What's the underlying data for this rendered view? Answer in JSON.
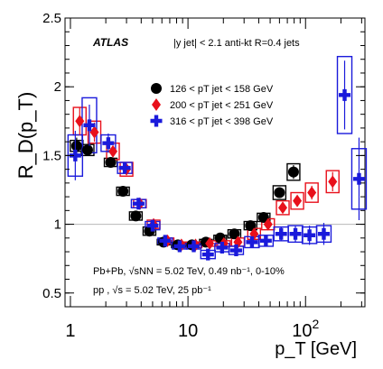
{
  "chart_data": {
    "type": "scatter",
    "experiment_label": "ATLAS",
    "selection_label": "|y jet| < 2.1 anti-kt R=0.4 jets",
    "xlabel": "p_T [GeV]",
    "ylabel": "R_D(p_T)",
    "xscale": "log",
    "xlim": [
      0.9,
      320
    ],
    "ylim": [
      0.4,
      2.5
    ],
    "x_ticks": [
      {
        "value": 1,
        "label": "1"
      },
      {
        "value": 10,
        "label": "10"
      },
      {
        "value": 100,
        "label": "10^2"
      }
    ],
    "y_ticks": [
      {
        "value": 0.5,
        "label": "0.5"
      },
      {
        "value": 1,
        "label": "1"
      },
      {
        "value": 1.5,
        "label": "1.5"
      },
      {
        "value": 2,
        "label": "2"
      },
      {
        "value": 2.5,
        "label": "2.5"
      }
    ],
    "reference_line": 1,
    "grid": false,
    "legend_position": "top-center",
    "annotations": [
      {
        "text": "Pb+Pb, √sNN = 5.02 TeV, 0.49 nb⁻¹, 0-10%"
      },
      {
        "text": "pp , √s = 5.02 TeV, 25 pb⁻¹"
      }
    ],
    "series": [
      {
        "name": "126 < pT jet < 158 GeV",
        "marker": "circle",
        "color": "#000000",
        "points": [
          {
            "x": 1.13,
            "y": 1.57,
            "elo": 0.06,
            "ehi": 0.06,
            "syslo": 0.04,
            "syshi": 0.04
          },
          {
            "x": 1.4,
            "y": 1.54,
            "elo": 0.04,
            "ehi": 0.04,
            "syslo": 0.04,
            "syshi": 0.04
          },
          {
            "x": 2.2,
            "y": 1.45,
            "elo": 0.02,
            "ehi": 0.02,
            "syslo": 0.03,
            "syshi": 0.03
          },
          {
            "x": 2.8,
            "y": 1.24,
            "elo": 0.02,
            "ehi": 0.02,
            "syslo": 0.03,
            "syshi": 0.03
          },
          {
            "x": 3.6,
            "y": 1.06,
            "elo": 0.01,
            "ehi": 0.01,
            "syslo": 0.03,
            "syshi": 0.03
          },
          {
            "x": 4.7,
            "y": 0.95,
            "elo": 0.01,
            "ehi": 0.01,
            "syslo": 0.03,
            "syshi": 0.03
          },
          {
            "x": 6.2,
            "y": 0.87,
            "elo": 0.01,
            "ehi": 0.01,
            "syslo": 0.02,
            "syshi": 0.02
          },
          {
            "x": 8.2,
            "y": 0.85,
            "elo": 0.01,
            "ehi": 0.01,
            "syslo": 0.02,
            "syshi": 0.02
          },
          {
            "x": 10.8,
            "y": 0.85,
            "elo": 0.01,
            "ehi": 0.01,
            "syslo": 0.02,
            "syshi": 0.02
          },
          {
            "x": 14.2,
            "y": 0.87,
            "elo": 0.01,
            "ehi": 0.01,
            "syslo": 0.02,
            "syshi": 0.02
          },
          {
            "x": 18.8,
            "y": 0.9,
            "elo": 0.01,
            "ehi": 0.01,
            "syslo": 0.02,
            "syshi": 0.02
          },
          {
            "x": 24.8,
            "y": 0.93,
            "elo": 0.01,
            "ehi": 0.01,
            "syslo": 0.03,
            "syshi": 0.03
          },
          {
            "x": 34,
            "y": 0.99,
            "elo": 0.02,
            "ehi": 0.02,
            "syslo": 0.03,
            "syshi": 0.03
          },
          {
            "x": 44,
            "y": 1.05,
            "elo": 0.02,
            "ehi": 0.02,
            "syslo": 0.03,
            "syshi": 0.03
          },
          {
            "x": 60,
            "y": 1.23,
            "elo": 0.03,
            "ehi": 0.03,
            "syslo": 0.05,
            "syshi": 0.05
          },
          {
            "x": 79,
            "y": 1.38,
            "elo": 0.05,
            "ehi": 0.05,
            "syslo": 0.06,
            "syshi": 0.06
          }
        ]
      },
      {
        "name": "200 < pT jet < 251 GeV",
        "marker": "diamond",
        "color": "#e8101b",
        "points": [
          {
            "x": 1.2,
            "y": 1.75,
            "elo": 0.1,
            "ehi": 0.1,
            "syslo": 0.1,
            "syshi": 0.1
          },
          {
            "x": 1.6,
            "y": 1.67,
            "elo": 0.07,
            "ehi": 0.07,
            "syslo": 0.08,
            "syshi": 0.08
          },
          {
            "x": 2.3,
            "y": 1.53,
            "elo": 0.04,
            "ehi": 0.04,
            "syslo": 0.06,
            "syshi": 0.06
          },
          {
            "x": 3,
            "y": 1.4,
            "elo": 0.03,
            "ehi": 0.03,
            "syslo": 0.05,
            "syshi": 0.05
          },
          {
            "x": 3.9,
            "y": 1.15,
            "elo": 0.02,
            "ehi": 0.02,
            "syslo": 0.03,
            "syshi": 0.03
          },
          {
            "x": 5.1,
            "y": 1.0,
            "elo": 0.02,
            "ehi": 0.02,
            "syslo": 0.03,
            "syshi": 0.03
          },
          {
            "x": 6.7,
            "y": 0.88,
            "elo": 0.01,
            "ehi": 0.01,
            "syslo": 0.02,
            "syshi": 0.02
          },
          {
            "x": 8.8,
            "y": 0.85,
            "elo": 0.01,
            "ehi": 0.01,
            "syslo": 0.02,
            "syshi": 0.02
          },
          {
            "x": 11.6,
            "y": 0.85,
            "elo": 0.01,
            "ehi": 0.01,
            "syslo": 0.02,
            "syshi": 0.02
          },
          {
            "x": 15.3,
            "y": 0.86,
            "elo": 0.01,
            "ehi": 0.01,
            "syslo": 0.02,
            "syshi": 0.02
          },
          {
            "x": 20.2,
            "y": 0.86,
            "elo": 0.01,
            "ehi": 0.01,
            "syslo": 0.02,
            "syshi": 0.02
          },
          {
            "x": 26.6,
            "y": 0.87,
            "elo": 0.01,
            "ehi": 0.01,
            "syslo": 0.03,
            "syshi": 0.03
          },
          {
            "x": 36.5,
            "y": 0.93,
            "elo": 0.02,
            "ehi": 0.02,
            "syslo": 0.04,
            "syshi": 0.04
          },
          {
            "x": 48,
            "y": 1.0,
            "elo": 0.02,
            "ehi": 0.02,
            "syslo": 0.04,
            "syshi": 0.04
          },
          {
            "x": 64,
            "y": 1.12,
            "elo": 0.03,
            "ehi": 0.03,
            "syslo": 0.05,
            "syshi": 0.05
          },
          {
            "x": 85,
            "y": 1.17,
            "elo": 0.04,
            "ehi": 0.04,
            "syslo": 0.06,
            "syshi": 0.06
          },
          {
            "x": 113,
            "y": 1.23,
            "elo": 0.05,
            "ehi": 0.05,
            "syslo": 0.07,
            "syshi": 0.07
          },
          {
            "x": 170,
            "y": 1.31,
            "elo": 0.07,
            "ehi": 0.07,
            "syslo": 0.08,
            "syshi": 0.08
          }
        ]
      },
      {
        "name": "316 < pT jet < 398 GeV",
        "marker": "cross",
        "color": "#1a1adb",
        "points": [
          {
            "x": 1.1,
            "y": 1.5,
            "elo": 0.18,
            "ehi": 0.18,
            "syslo": 0.15,
            "syshi": 0.15
          },
          {
            "x": 1.45,
            "y": 1.72,
            "elo": 0.15,
            "ehi": 0.15,
            "syslo": 0.2,
            "syshi": 0.2
          },
          {
            "x": 2.1,
            "y": 1.59,
            "elo": 0.07,
            "ehi": 0.07,
            "syslo": 0.06,
            "syshi": 0.06
          },
          {
            "x": 2.9,
            "y": 1.41,
            "elo": 0.04,
            "ehi": 0.04,
            "syslo": 0.04,
            "syshi": 0.04
          },
          {
            "x": 3.8,
            "y": 1.15,
            "elo": 0.03,
            "ehi": 0.03,
            "syslo": 0.03,
            "syshi": 0.03
          },
          {
            "x": 5.0,
            "y": 0.99,
            "elo": 0.02,
            "ehi": 0.02,
            "syslo": 0.03,
            "syshi": 0.03
          },
          {
            "x": 6.4,
            "y": 0.88,
            "elo": 0.02,
            "ehi": 0.02,
            "syslo": 0.02,
            "syshi": 0.02
          },
          {
            "x": 8.5,
            "y": 0.84,
            "elo": 0.02,
            "ehi": 0.02,
            "syslo": 0.02,
            "syshi": 0.02
          },
          {
            "x": 11.2,
            "y": 0.84,
            "elo": 0.02,
            "ehi": 0.02,
            "syslo": 0.02,
            "syshi": 0.02
          },
          {
            "x": 14.8,
            "y": 0.78,
            "elo": 0.02,
            "ehi": 0.02,
            "syslo": 0.03,
            "syshi": 0.03
          },
          {
            "x": 19.5,
            "y": 0.83,
            "elo": 0.03,
            "ehi": 0.03,
            "syslo": 0.03,
            "syshi": 0.03
          },
          {
            "x": 25.7,
            "y": 0.81,
            "elo": 0.03,
            "ehi": 0.03,
            "syslo": 0.03,
            "syshi": 0.03
          },
          {
            "x": 35,
            "y": 0.87,
            "elo": 0.04,
            "ehi": 0.04,
            "syslo": 0.04,
            "syshi": 0.04
          },
          {
            "x": 46,
            "y": 0.88,
            "elo": 0.04,
            "ehi": 0.04,
            "syslo": 0.04,
            "syshi": 0.04
          },
          {
            "x": 62,
            "y": 0.93,
            "elo": 0.05,
            "ehi": 0.05,
            "syslo": 0.05,
            "syshi": 0.05
          },
          {
            "x": 82,
            "y": 0.93,
            "elo": 0.06,
            "ehi": 0.06,
            "syslo": 0.06,
            "syshi": 0.06
          },
          {
            "x": 108,
            "y": 0.92,
            "elo": 0.07,
            "ehi": 0.07,
            "syslo": 0.06,
            "syshi": 0.06
          },
          {
            "x": 143,
            "y": 0.93,
            "elo": 0.08,
            "ehi": 0.08,
            "syslo": 0.06,
            "syshi": 0.06
          },
          {
            "x": 215,
            "y": 1.94,
            "elo": 0.25,
            "ehi": 0.25,
            "syslo": 0.28,
            "syshi": 0.28
          },
          {
            "x": 285,
            "y": 1.33,
            "elo": 0.3,
            "ehi": 0.3,
            "syslo": 0.22,
            "syshi": 0.22
          }
        ]
      }
    ]
  }
}
